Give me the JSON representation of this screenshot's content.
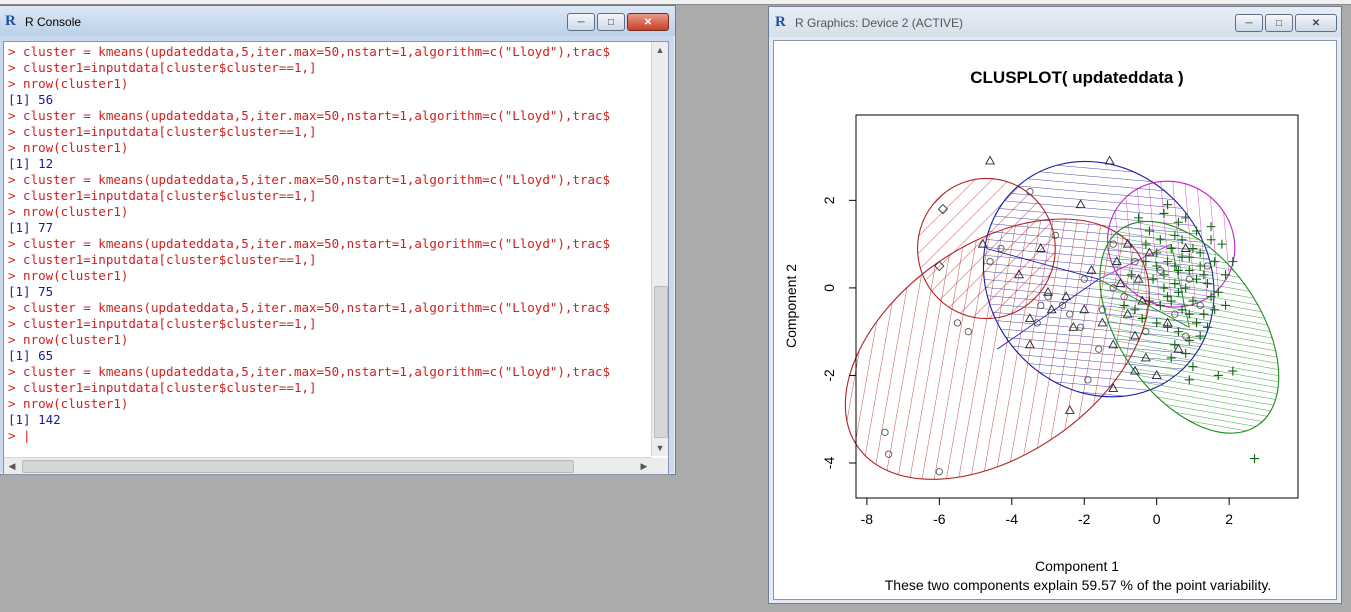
{
  "console": {
    "title": "R Console",
    "lines": [
      {
        "t": "cmd",
        "text": "> cluster = kmeans(updateddata,5,iter.max=50,nstart=1,algorithm=c(\"Lloyd\"),trac$"
      },
      {
        "t": "cmd",
        "text": "> cluster1=inputdata[cluster$cluster==1,]"
      },
      {
        "t": "cmd",
        "text": "> nrow(cluster1)"
      },
      {
        "t": "out",
        "text": "[1] 56"
      },
      {
        "t": "cmd",
        "text": "> cluster = kmeans(updateddata,5,iter.max=50,nstart=1,algorithm=c(\"Lloyd\"),trac$"
      },
      {
        "t": "cmd",
        "text": "> cluster1=inputdata[cluster$cluster==1,]"
      },
      {
        "t": "cmd",
        "text": "> nrow(cluster1)"
      },
      {
        "t": "out",
        "text": "[1] 12"
      },
      {
        "t": "cmd",
        "text": "> cluster = kmeans(updateddata,5,iter.max=50,nstart=1,algorithm=c(\"Lloyd\"),trac$"
      },
      {
        "t": "cmd",
        "text": "> cluster1=inputdata[cluster$cluster==1,]"
      },
      {
        "t": "cmd",
        "text": "> nrow(cluster1)"
      },
      {
        "t": "out",
        "text": "[1] 77"
      },
      {
        "t": "cmd",
        "text": "> cluster = kmeans(updateddata,5,iter.max=50,nstart=1,algorithm=c(\"Lloyd\"),trac$"
      },
      {
        "t": "cmd",
        "text": "> cluster1=inputdata[cluster$cluster==1,]"
      },
      {
        "t": "cmd",
        "text": "> nrow(cluster1)"
      },
      {
        "t": "out",
        "text": "[1] 75"
      },
      {
        "t": "cmd",
        "text": "> cluster = kmeans(updateddata,5,iter.max=50,nstart=1,algorithm=c(\"Lloyd\"),trac$"
      },
      {
        "t": "cmd",
        "text": "> cluster1=inputdata[cluster$cluster==1,]"
      },
      {
        "t": "cmd",
        "text": "> nrow(cluster1)"
      },
      {
        "t": "out",
        "text": "[1] 65"
      },
      {
        "t": "cmd",
        "text": "> cluster = kmeans(updateddata,5,iter.max=50,nstart=1,algorithm=c(\"Lloyd\"),trac$"
      },
      {
        "t": "cmd",
        "text": "> cluster1=inputdata[cluster$cluster==1,]"
      },
      {
        "t": "cmd",
        "text": "> nrow(cluster1)"
      },
      {
        "t": "out",
        "text": "[1] 142"
      },
      {
        "t": "cmd",
        "text": "> |"
      }
    ]
  },
  "graphics": {
    "title": "R Graphics: Device 2 (ACTIVE)"
  },
  "chart_data": {
    "type": "scatter",
    "title": "CLUSPLOT( updateddata )",
    "xlabel": "Component 1",
    "ylabel": "Component 2",
    "subtitle": "These two components explain 59.57 % of the point variability.",
    "xlim": [
      -8.3,
      3.9
    ],
    "ylim": [
      -4.8,
      3.95
    ],
    "xticks": [
      -8,
      -6,
      -4,
      -2,
      0,
      2
    ],
    "yticks": [
      -4,
      -2,
      0,
      2
    ],
    "grid": false,
    "clusters": [
      {
        "color": "#b22222",
        "ellipse": {
          "cx": -4.4,
          "cy": -1.4,
          "rx": 4.7,
          "ry": 2.4,
          "angle": 35
        }
      },
      {
        "color": "#b22222",
        "ellipse": {
          "cx": -4.7,
          "cy": 0.9,
          "rx": 1.9,
          "ry": 1.6,
          "angle": 0
        }
      },
      {
        "color": "#1a1aa0",
        "ellipse": {
          "cx": -1.6,
          "cy": 0.2,
          "rx": 3.4,
          "ry": 2.5,
          "angle": -50
        }
      },
      {
        "color": "#c020c0",
        "ellipse": {
          "cx": 0.4,
          "cy": 1.0,
          "rx": 1.8,
          "ry": 1.4,
          "angle": -40
        }
      },
      {
        "color": "#1a8c1a",
        "ellipse": {
          "cx": 0.9,
          "cy": -0.9,
          "rx": 3.3,
          "ry": 1.6,
          "angle": -55
        }
      }
    ],
    "points": {
      "circles": [
        [
          -7.5,
          -3.3
        ],
        [
          -7.4,
          -3.8
        ],
        [
          -6.0,
          -4.2
        ],
        [
          -5.5,
          -0.8
        ],
        [
          -5.2,
          -1.0
        ],
        [
          -4.6,
          0.6
        ],
        [
          -3.5,
          2.2
        ],
        [
          -3.2,
          -0.4
        ],
        [
          -3.0,
          -0.2
        ],
        [
          -2.8,
          1.2
        ],
        [
          -2.4,
          -0.6
        ],
        [
          -2.0,
          0.2
        ],
        [
          -1.9,
          -2.1
        ],
        [
          -1.5,
          -0.5
        ],
        [
          -1.2,
          0.0
        ],
        [
          -0.9,
          -0.2
        ],
        [
          -0.6,
          0.6
        ],
        [
          -0.3,
          -1.0
        ],
        [
          0.1,
          0.4
        ],
        [
          0.5,
          -0.6
        ],
        [
          0.9,
          0.2
        ],
        [
          1.2,
          -0.4
        ],
        [
          -1.2,
          1.0
        ],
        [
          -4.3,
          0.9
        ],
        [
          -2.6,
          -0.4
        ],
        [
          -3.3,
          -0.8
        ],
        [
          -2.1,
          -0.9
        ],
        [
          -1.6,
          -1.4
        ],
        [
          0.8,
          -1.1
        ],
        [
          1.4,
          0.5
        ]
      ],
      "triangles": [
        [
          -4.6,
          2.9
        ],
        [
          -1.3,
          2.9
        ],
        [
          -4.8,
          1.0
        ],
        [
          -3.8,
          0.3
        ],
        [
          -3.2,
          0.9
        ],
        [
          -3.0,
          -0.1
        ],
        [
          -2.9,
          -0.5
        ],
        [
          -2.5,
          -0.2
        ],
        [
          -2.3,
          -0.9
        ],
        [
          -2.0,
          -0.5
        ],
        [
          -1.8,
          0.4
        ],
        [
          -1.5,
          -0.8
        ],
        [
          -1.2,
          -1.3
        ],
        [
          -1.0,
          0.1
        ],
        [
          -0.8,
          -0.6
        ],
        [
          -0.5,
          0.2
        ],
        [
          -0.3,
          -1.6
        ],
        [
          0.0,
          -2.0
        ],
        [
          -0.6,
          -1.1
        ],
        [
          -0.2,
          0.8
        ],
        [
          -0.6,
          -1.9
        ],
        [
          -2.4,
          -2.8
        ],
        [
          -1.2,
          -2.3
        ],
        [
          -3.5,
          -0.7
        ],
        [
          -3.5,
          -1.3
        ],
        [
          -2.1,
          1.9
        ],
        [
          -1.1,
          0.6
        ],
        [
          -0.4,
          -0.3
        ],
        [
          0.3,
          -0.8
        ],
        [
          0.8,
          0.9
        ],
        [
          0.6,
          -1.4
        ],
        [
          -0.8,
          1.0
        ]
      ],
      "diamonds": [
        [
          -5.9,
          1.8
        ],
        [
          -6.0,
          0.5
        ]
      ],
      "pluses": [
        [
          0.2,
          1.7
        ],
        [
          0.5,
          1.2
        ],
        [
          0.8,
          1.6
        ],
        [
          1.1,
          1.3
        ],
        [
          1.5,
          1.1
        ],
        [
          1.8,
          1.0
        ],
        [
          -0.3,
          1.0
        ],
        [
          0.0,
          0.8
        ],
        [
          0.3,
          0.6
        ],
        [
          0.6,
          0.4
        ],
        [
          0.9,
          0.7
        ],
        [
          1.2,
          0.5
        ],
        [
          1.6,
          0.6
        ],
        [
          2.1,
          0.6
        ],
        [
          -0.1,
          0.2
        ],
        [
          0.2,
          0.0
        ],
        [
          0.5,
          0.1
        ],
        [
          0.8,
          0.0
        ],
        [
          1.1,
          0.2
        ],
        [
          1.4,
          0.1
        ],
        [
          1.7,
          -0.1
        ],
        [
          -0.2,
          -0.3
        ],
        [
          0.1,
          -0.4
        ],
        [
          0.4,
          -0.3
        ],
        [
          0.7,
          -0.5
        ],
        [
          1.0,
          -0.3
        ],
        [
          1.3,
          -0.6
        ],
        [
          1.6,
          -0.5
        ],
        [
          0.0,
          -0.8
        ],
        [
          0.3,
          -0.9
        ],
        [
          0.6,
          -1.0
        ],
        [
          0.9,
          -1.2
        ],
        [
          1.2,
          -1.1
        ],
        [
          -0.4,
          -0.7
        ],
        [
          -0.6,
          -0.5
        ],
        [
          -0.9,
          -0.4
        ],
        [
          0.1,
          1.1
        ],
        [
          0.4,
          0.9
        ],
        [
          0.7,
          1.1
        ],
        [
          1.0,
          0.9
        ],
        [
          0.2,
          0.3
        ],
        [
          0.5,
          0.5
        ],
        [
          0.9,
          0.4
        ],
        [
          1.3,
          0.3
        ],
        [
          1.5,
          -0.2
        ],
        [
          0.3,
          -0.2
        ],
        [
          0.6,
          -0.1
        ],
        [
          0.9,
          -0.6
        ],
        [
          0.8,
          -1.5
        ],
        [
          0.4,
          -1.6
        ],
        [
          1.0,
          -1.8
        ],
        [
          1.7,
          -2.0
        ],
        [
          2.1,
          -1.9
        ],
        [
          2.7,
          -3.9
        ],
        [
          0.9,
          -2.1
        ],
        [
          1.9,
          -0.4
        ],
        [
          1.5,
          1.4
        ],
        [
          0.3,
          1.9
        ],
        [
          -0.5,
          1.6
        ],
        [
          -0.2,
          1.3
        ],
        [
          0.0,
          0.5
        ],
        [
          0.7,
          0.7
        ],
        [
          1.1,
          -0.8
        ],
        [
          1.4,
          -0.9
        ],
        [
          -0.3,
          0.6
        ],
        [
          -0.7,
          0.3
        ],
        [
          0.5,
          -1.3
        ],
        [
          1.9,
          0.3
        ],
        [
          1.2,
          0.8
        ],
        [
          0.6,
          1.5
        ]
      ]
    }
  }
}
